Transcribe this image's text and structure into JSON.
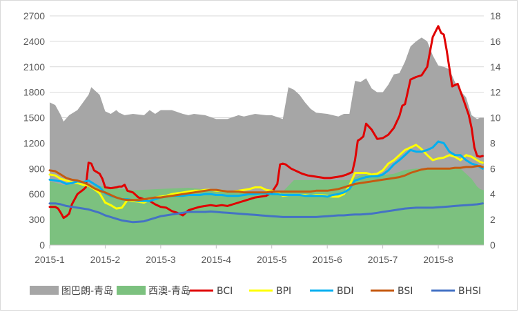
{
  "chart_data": {
    "type": "area+line",
    "x_tick_labels": [
      "2015-1",
      "2015-2",
      "2015-3",
      "2015-4",
      "2015-5",
      "2015-6",
      "2015-7",
      "2015-8"
    ],
    "y_left": {
      "ticks": [
        0,
        300,
        600,
        900,
        1200,
        1500,
        1800,
        2100,
        2400,
        2700
      ],
      "range": [
        0,
        2700
      ]
    },
    "y_right": {
      "ticks": [
        0,
        2,
        4,
        6,
        8,
        10,
        12,
        14,
        16,
        18
      ],
      "range": [
        0,
        18
      ]
    },
    "grid": "horizontal",
    "legend_position": "bottom",
    "x_range": [
      0,
      7.82
    ],
    "series": [
      {
        "name": "图巴朗-青岛",
        "kind": "area",
        "axis": "right",
        "color": "#a6a6a6",
        "x": [
          0,
          0.1,
          0.2,
          0.25,
          0.35,
          0.5,
          0.6,
          0.7,
          0.75,
          0.8,
          0.9,
          1.0,
          1.1,
          1.2,
          1.25,
          1.35,
          1.5,
          1.7,
          1.8,
          1.9,
          2.0,
          2.2,
          2.4,
          2.5,
          2.6,
          2.8,
          3.0,
          3.2,
          3.4,
          3.5,
          3.7,
          3.9,
          4.0,
          4.2,
          4.3,
          4.4,
          4.5,
          4.6,
          4.7,
          4.8,
          5.0,
          5.2,
          5.3,
          5.4,
          5.5,
          5.6,
          5.7,
          5.8,
          5.9,
          6.0,
          6.1,
          6.2,
          6.3,
          6.4,
          6.5,
          6.6,
          6.7,
          6.8,
          6.9,
          7.0,
          7.1,
          7.2,
          7.3,
          7.4,
          7.5,
          7.6,
          7.7,
          7.75,
          7.82
        ],
        "values": [
          11.2,
          11.0,
          10.2,
          9.7,
          10.2,
          10.6,
          11.2,
          11.8,
          12.4,
          12.2,
          11.8,
          10.5,
          10.3,
          10.6,
          10.4,
          10.2,
          10.3,
          10.2,
          10.6,
          10.3,
          10.6,
          10.6,
          10.3,
          10.2,
          10.3,
          10.2,
          9.9,
          9.9,
          10.2,
          10.1,
          10.3,
          10.2,
          10.2,
          9.9,
          12.4,
          12.2,
          11.8,
          11.2,
          10.7,
          10.4,
          10.3,
          10.1,
          10.3,
          10.3,
          12.9,
          12.8,
          13.1,
          12.3,
          12.0,
          12.0,
          12.6,
          13.4,
          13.5,
          14.4,
          15.6,
          16.0,
          16.3,
          16.0,
          14.9,
          14.1,
          14.0,
          13.8,
          12.8,
          12.1,
          11.6,
          10.2,
          9.9,
          10.0,
          10.0
        ]
      },
      {
        "name": "西澳-青岛",
        "kind": "area",
        "axis": "right",
        "color": "#7cc17f",
        "x": [
          0,
          0.1,
          0.25,
          0.5,
          1.0,
          1.5,
          2.0,
          2.5,
          3.0,
          3.5,
          4.0,
          4.2,
          4.4,
          4.8,
          5.2,
          5.4,
          5.5,
          5.6,
          5.8,
          6.0,
          6.2,
          6.4,
          6.6,
          6.8,
          7.0,
          7.2,
          7.4,
          7.6,
          7.7,
          7.75,
          7.82
        ],
        "values": [
          5.0,
          4.9,
          4.7,
          4.8,
          4.6,
          4.3,
          4.4,
          4.5,
          4.3,
          4.2,
          4.1,
          4.2,
          5.1,
          5.1,
          5.1,
          5.1,
          5.3,
          5.5,
          5.6,
          5.5,
          5.6,
          5.9,
          6.0,
          6.0,
          6.0,
          6.0,
          6.0,
          5.2,
          4.6,
          4.4,
          4.3
        ]
      },
      {
        "name": "BCI",
        "kind": "line",
        "axis": "left",
        "color": "#e00000",
        "x": [
          0,
          0.1,
          0.15,
          0.2,
          0.25,
          0.3,
          0.35,
          0.4,
          0.5,
          0.6,
          0.65,
          0.7,
          0.75,
          0.8,
          0.9,
          0.95,
          1.0,
          1.1,
          1.2,
          1.25,
          1.3,
          1.35,
          1.4,
          1.5,
          1.6,
          1.7,
          1.8,
          1.9,
          2.0,
          2.1,
          2.2,
          2.3,
          2.4,
          2.5,
          2.6,
          2.7,
          2.8,
          2.9,
          3.0,
          3.1,
          3.2,
          3.3,
          3.4,
          3.5,
          3.6,
          3.7,
          3.8,
          3.9,
          4.0,
          4.1,
          4.15,
          4.2,
          4.25,
          4.35,
          4.45,
          4.55,
          4.65,
          4.75,
          4.85,
          4.95,
          5.05,
          5.15,
          5.25,
          5.35,
          5.45,
          5.5,
          5.55,
          5.6,
          5.65,
          5.7,
          5.8,
          5.9,
          6.0,
          6.1,
          6.2,
          6.3,
          6.35,
          6.4,
          6.5,
          6.6,
          6.7,
          6.75,
          6.8,
          6.9,
          7.0,
          7.05,
          7.1,
          7.15,
          7.25,
          7.35,
          7.45,
          7.55,
          7.6,
          7.65,
          7.7,
          7.75,
          7.8
        ],
        "values": [
          450,
          450,
          430,
          380,
          320,
          340,
          370,
          480,
          600,
          650,
          680,
          970,
          960,
          880,
          840,
          780,
          680,
          670,
          680,
          690,
          690,
          710,
          640,
          620,
          560,
          540,
          520,
          480,
          450,
          440,
          400,
          380,
          350,
          410,
          430,
          450,
          460,
          470,
          460,
          470,
          460,
          480,
          500,
          520,
          540,
          560,
          570,
          580,
          620,
          720,
          950,
          960,
          950,
          900,
          870,
          840,
          820,
          810,
          800,
          790,
          790,
          800,
          810,
          830,
          860,
          1000,
          1230,
          1250,
          1280,
          1430,
          1360,
          1250,
          1260,
          1300,
          1380,
          1520,
          1640,
          1660,
          1950,
          1980,
          2000,
          2050,
          2100,
          2450,
          2580,
          2500,
          2480,
          2300,
          1870,
          1900,
          1720,
          1530,
          1380,
          1150,
          1050,
          1040,
          1050
        ]
      },
      {
        "name": "BPI",
        "kind": "line",
        "axis": "left",
        "color": "#ffff00",
        "x": [
          0,
          0.1,
          0.2,
          0.3,
          0.4,
          0.5,
          0.6,
          0.7,
          0.8,
          0.9,
          1.0,
          1.1,
          1.2,
          1.3,
          1.4,
          1.5,
          1.6,
          1.7,
          1.8,
          1.9,
          2.0,
          2.1,
          2.2,
          2.3,
          2.4,
          2.5,
          2.6,
          2.7,
          2.8,
          2.9,
          3.0,
          3.1,
          3.2,
          3.3,
          3.4,
          3.5,
          3.6,
          3.7,
          3.8,
          3.9,
          4.0,
          4.1,
          4.2,
          4.3,
          4.4,
          4.5,
          4.6,
          4.7,
          4.8,
          4.9,
          5.0,
          5.1,
          5.2,
          5.3,
          5.4,
          5.5,
          5.6,
          5.7,
          5.8,
          5.9,
          6.0,
          6.1,
          6.2,
          6.3,
          6.4,
          6.5,
          6.6,
          6.7,
          6.8,
          6.9,
          7.0,
          7.1,
          7.2,
          7.3,
          7.4,
          7.5,
          7.6,
          7.7,
          7.75,
          7.8
        ],
        "values": [
          830,
          820,
          780,
          760,
          740,
          730,
          710,
          700,
          660,
          610,
          500,
          470,
          430,
          440,
          530,
          520,
          510,
          500,
          530,
          560,
          570,
          580,
          600,
          610,
          620,
          630,
          640,
          640,
          650,
          650,
          640,
          640,
          630,
          630,
          640,
          650,
          660,
          680,
          680,
          650,
          640,
          620,
          580,
          590,
          590,
          590,
          590,
          580,
          590,
          590,
          580,
          570,
          570,
          600,
          700,
          850,
          850,
          850,
          830,
          840,
          880,
          960,
          1000,
          1060,
          1120,
          1150,
          1180,
          1130,
          1060,
          1000,
          1020,
          1030,
          1060,
          1040,
          1000,
          1060,
          1040,
          1000,
          980,
          970
        ]
      },
      {
        "name": "BDI",
        "kind": "line",
        "axis": "left",
        "color": "#00b0f0",
        "x": [
          0,
          0.1,
          0.2,
          0.3,
          0.4,
          0.5,
          0.6,
          0.7,
          0.8,
          0.9,
          1.0,
          1.1,
          1.2,
          1.3,
          1.4,
          1.5,
          1.6,
          1.7,
          1.8,
          1.9,
          2.0,
          2.1,
          2.2,
          2.3,
          2.4,
          2.5,
          2.6,
          2.7,
          2.8,
          2.9,
          3.0,
          3.1,
          3.2,
          3.3,
          3.4,
          3.5,
          3.6,
          3.7,
          3.8,
          3.9,
          4.0,
          4.1,
          4.2,
          4.3,
          4.4,
          4.5,
          4.6,
          4.7,
          4.8,
          4.9,
          5.0,
          5.1,
          5.2,
          5.3,
          5.4,
          5.5,
          5.6,
          5.7,
          5.8,
          5.9,
          6.0,
          6.1,
          6.2,
          6.3,
          6.4,
          6.5,
          6.6,
          6.7,
          6.8,
          6.9,
          7.0,
          7.1,
          7.2,
          7.3,
          7.4,
          7.5,
          7.6,
          7.7,
          7.75,
          7.8
        ],
        "values": [
          770,
          760,
          750,
          720,
          730,
          750,
          740,
          760,
          720,
          680,
          610,
          580,
          560,
          540,
          540,
          530,
          520,
          520,
          520,
          540,
          560,
          570,
          580,
          580,
          580,
          590,
          590,
          590,
          600,
          600,
          590,
          590,
          580,
          580,
          580,
          590,
          600,
          600,
          610,
          610,
          600,
          600,
          590,
          590,
          590,
          590,
          580,
          580,
          580,
          580,
          570,
          590,
          600,
          620,
          660,
          760,
          780,
          800,
          810,
          810,
          830,
          880,
          950,
          1000,
          1060,
          1120,
          1100,
          1100,
          1120,
          1150,
          1220,
          1200,
          1100,
          1060,
          1060,
          1000,
          960,
          940,
          920,
          900
        ]
      },
      {
        "name": "BSI",
        "kind": "line",
        "axis": "left",
        "color": "#c55a11",
        "x": [
          0,
          0.1,
          0.2,
          0.3,
          0.4,
          0.5,
          0.6,
          0.7,
          0.8,
          0.9,
          1.0,
          1.1,
          1.2,
          1.3,
          1.4,
          1.5,
          1.6,
          1.7,
          1.8,
          1.9,
          2.0,
          2.1,
          2.2,
          2.3,
          2.4,
          2.5,
          2.6,
          2.7,
          2.8,
          2.9,
          3.0,
          3.1,
          3.2,
          3.3,
          3.4,
          3.5,
          3.6,
          3.7,
          3.8,
          3.9,
          4.0,
          4.1,
          4.2,
          4.3,
          4.4,
          4.5,
          4.6,
          4.7,
          4.8,
          4.9,
          5.0,
          5.1,
          5.2,
          5.3,
          5.4,
          5.5,
          5.6,
          5.7,
          5.8,
          5.9,
          6.0,
          6.1,
          6.2,
          6.3,
          6.4,
          6.5,
          6.6,
          6.7,
          6.8,
          6.9,
          7.0,
          7.1,
          7.2,
          7.3,
          7.4,
          7.5,
          7.6,
          7.7,
          7.75,
          7.8
        ],
        "values": [
          880,
          870,
          830,
          790,
          770,
          760,
          740,
          710,
          670,
          640,
          620,
          590,
          560,
          540,
          530,
          530,
          530,
          540,
          550,
          560,
          560,
          570,
          580,
          590,
          600,
          610,
          620,
          630,
          640,
          650,
          650,
          640,
          630,
          630,
          630,
          620,
          620,
          620,
          620,
          620,
          630,
          630,
          630,
          630,
          630,
          630,
          630,
          630,
          640,
          640,
          640,
          650,
          660,
          680,
          700,
          720,
          730,
          740,
          750,
          760,
          770,
          780,
          790,
          800,
          820,
          850,
          870,
          890,
          900,
          900,
          900,
          900,
          900,
          910,
          910,
          920,
          920,
          930,
          930,
          920
        ]
      },
      {
        "name": "BHSI",
        "kind": "line",
        "axis": "left",
        "color": "#4472c4",
        "x": [
          0,
          0.1,
          0.2,
          0.3,
          0.4,
          0.5,
          0.6,
          0.7,
          0.8,
          0.9,
          1.0,
          1.1,
          1.2,
          1.3,
          1.4,
          1.5,
          1.6,
          1.7,
          1.8,
          1.9,
          2.0,
          2.1,
          2.2,
          2.3,
          2.4,
          2.5,
          2.6,
          2.7,
          2.8,
          2.9,
          3.0,
          3.1,
          3.2,
          3.3,
          3.4,
          3.5,
          3.6,
          3.7,
          3.8,
          3.9,
          4.0,
          4.1,
          4.2,
          4.3,
          4.4,
          4.5,
          4.6,
          4.7,
          4.8,
          4.9,
          5.0,
          5.1,
          5.2,
          5.3,
          5.4,
          5.5,
          5.6,
          5.7,
          5.8,
          5.9,
          6.0,
          6.1,
          6.2,
          6.3,
          6.4,
          6.5,
          6.6,
          6.7,
          6.8,
          6.9,
          7.0,
          7.1,
          7.2,
          7.3,
          7.4,
          7.5,
          7.6,
          7.7,
          7.75,
          7.8
        ],
        "values": [
          490,
          490,
          480,
          460,
          450,
          440,
          430,
          420,
          400,
          380,
          350,
          330,
          310,
          290,
          280,
          270,
          275,
          280,
          300,
          320,
          340,
          350,
          360,
          370,
          380,
          390,
          390,
          390,
          390,
          395,
          390,
          385,
          380,
          375,
          370,
          365,
          360,
          355,
          350,
          345,
          340,
          335,
          330,
          330,
          330,
          330,
          330,
          330,
          330,
          335,
          340,
          345,
          350,
          350,
          355,
          360,
          360,
          365,
          370,
          380,
          390,
          400,
          410,
          420,
          430,
          435,
          440,
          440,
          440,
          440,
          445,
          450,
          455,
          460,
          465,
          470,
          475,
          480,
          485,
          490
        ]
      }
    ]
  }
}
